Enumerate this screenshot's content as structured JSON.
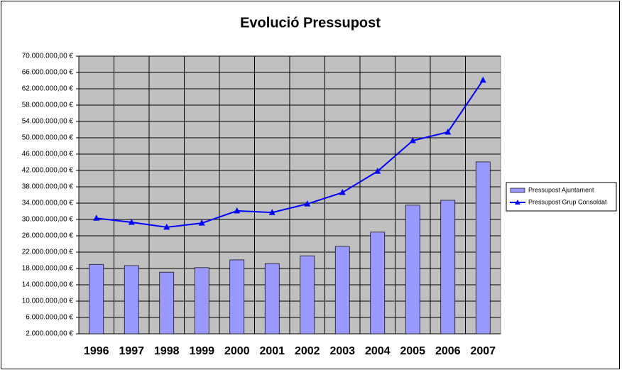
{
  "chart_data": {
    "type": "bar-line",
    "title": "Evolució Pressupost",
    "categories": [
      "1996",
      "1997",
      "1998",
      "1999",
      "2000",
      "2001",
      "2002",
      "2003",
      "2004",
      "2005",
      "2006",
      "2007"
    ],
    "series": [
      {
        "name": "Pressupost Ajuntament",
        "type": "bar",
        "color": "#9999ff",
        "values": [
          19000000,
          18700000,
          17100000,
          18200000,
          20100000,
          19200000,
          21100000,
          23400000,
          26900000,
          33500000,
          34700000,
          44100000
        ]
      },
      {
        "name": "Pressupost Grup Consoldat",
        "type": "line",
        "color": "#0000ff",
        "values": [
          30300000,
          29300000,
          28100000,
          29100000,
          32100000,
          31700000,
          33800000,
          36600000,
          41800000,
          49300000,
          51400000,
          64100000
        ]
      }
    ],
    "ylim": [
      2000000,
      70000000
    ],
    "yticks": [
      {
        "value": 2000000,
        "label": "2.000.000,00 €"
      },
      {
        "value": 6000000,
        "label": "6.000.000,00 €"
      },
      {
        "value": 10000000,
        "label": "10.000.000,00 €"
      },
      {
        "value": 14000000,
        "label": "14.000.000,00 €"
      },
      {
        "value": 18000000,
        "label": "18.000.000,00 €"
      },
      {
        "value": 22000000,
        "label": "22.000.000,00 €"
      },
      {
        "value": 26000000,
        "label": "26.000.000,00 €"
      },
      {
        "value": 30000000,
        "label": "30.000.000,00 €"
      },
      {
        "value": 34000000,
        "label": "34.000.000,00 €"
      },
      {
        "value": 38000000,
        "label": "38.000.000,00 €"
      },
      {
        "value": 42000000,
        "label": "42.000.000,00 €"
      },
      {
        "value": 46000000,
        "label": "46.000.000,00 €"
      },
      {
        "value": 50000000,
        "label": "50.000.000,00 €"
      },
      {
        "value": 54000000,
        "label": "54.000.000,00 €"
      },
      {
        "value": 58000000,
        "label": "58.000.000,00 €"
      },
      {
        "value": 62000000,
        "label": "62.000.000,00 €"
      },
      {
        "value": 66000000,
        "label": "66.000.000,00 €"
      },
      {
        "value": 70000000,
        "label": "70.000.000,00 €"
      }
    ],
    "grid": true,
    "plot_background": "#c0c0c0",
    "legend": "right"
  }
}
